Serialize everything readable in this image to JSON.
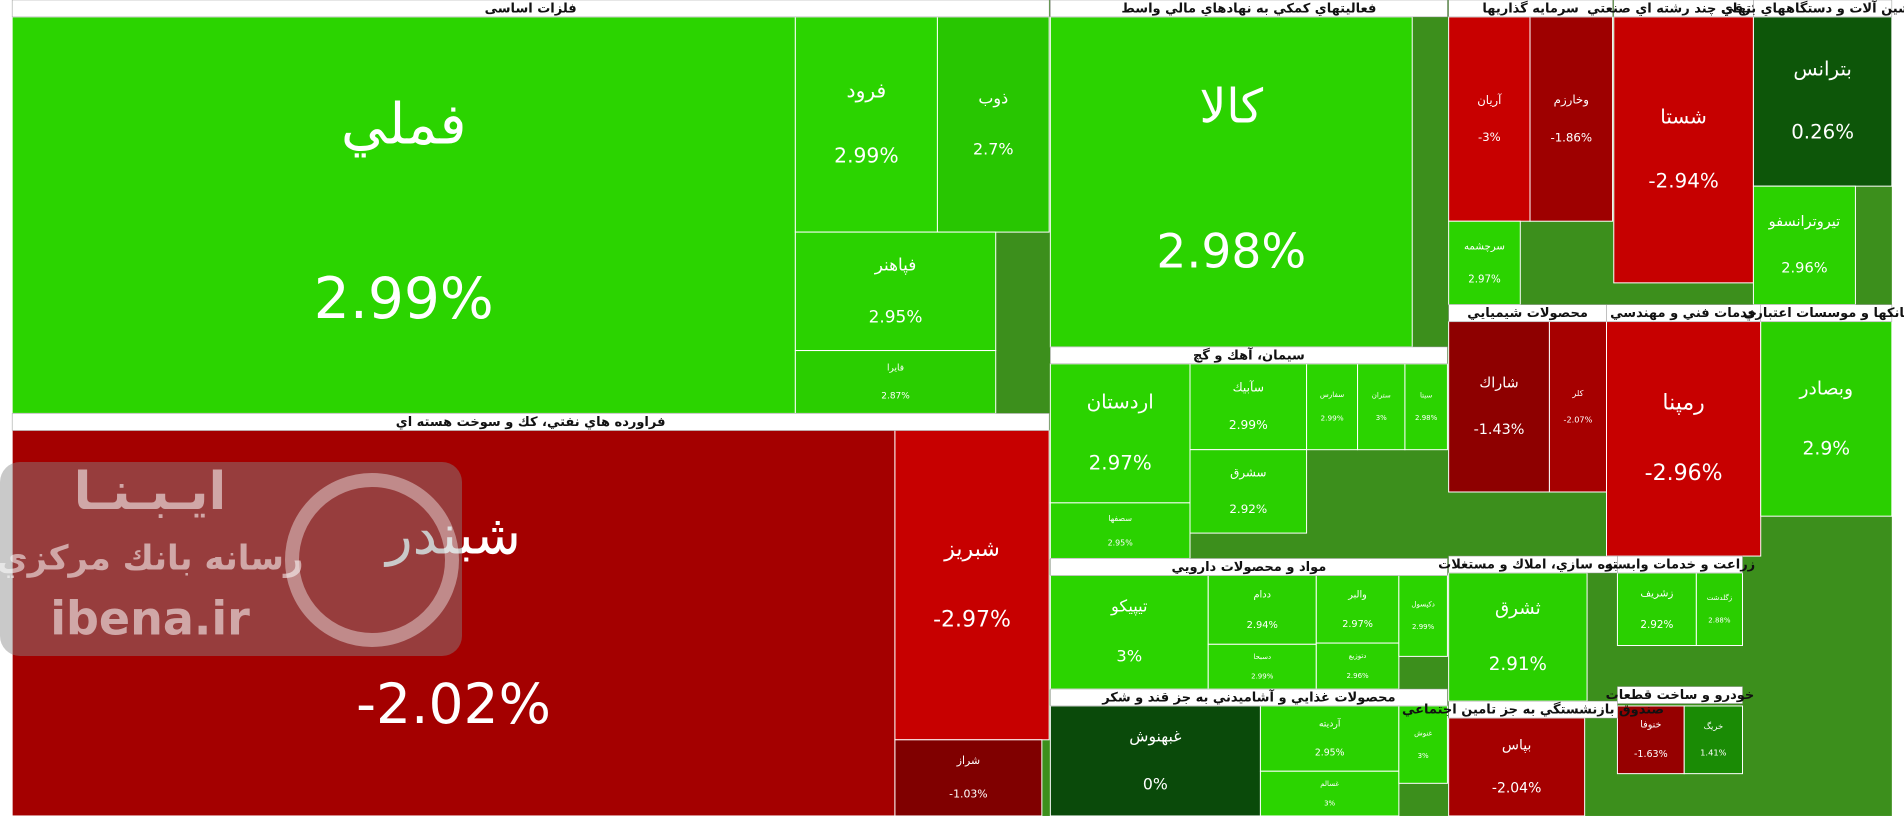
{
  "chart_data": {
    "type": "treemap",
    "color_scale": {
      "positive": "#2bd400",
      "positive_dark": "#0a4a0a",
      "negative": "#c80000",
      "negative_dark": "#5a0000"
    },
    "watermark": {
      "title": "ايـبـنـا",
      "subtitle": "رسانه بانك مركزي",
      "url": "ibena.ir"
    },
    "sectors": [
      {
        "name": "فلزات اساسی",
        "categories": [
          "فملي",
          "فرود",
          "ذوب",
          "فپاهنر",
          "فايرا"
        ],
        "values": [
          2.99,
          2.99,
          2.7,
          2.95,
          2.87
        ],
        "value_labels": [
          "2.99%",
          "2.99%",
          "2.7%",
          "2.95%",
          "2.87%"
        ]
      },
      {
        "name": "فراورده هاي نفتي، كك و سوخت هسته اي",
        "categories": [
          "شبندر",
          "شبريز",
          "شراز"
        ],
        "values": [
          -2.02,
          -2.97,
          -1.03
        ],
        "value_labels": [
          "-2.02%",
          "-2.97%",
          "-1.03%"
        ]
      },
      {
        "name": "فعاليتهاي كمكي به نهادهاي مالي واسط",
        "categories": [
          "كالا"
        ],
        "values": [
          2.98
        ],
        "value_labels": [
          "2.98%"
        ]
      },
      {
        "name": "سيمان، آهك و گچ",
        "categories": [
          "اردستان",
          "سصفها",
          "سآبيك",
          "سشرق",
          "سفارس",
          "ستران",
          "سيتا"
        ],
        "values": [
          2.97,
          2.95,
          2.99,
          2.92,
          2.99,
          3,
          2.98
        ],
        "value_labels": [
          "2.97%",
          "2.95%",
          "2.99%",
          "2.92%",
          "2.99%",
          "3%",
          "2.98%"
        ]
      },
      {
        "name": "مواد و محصولات دارويي",
        "categories": [
          "تيپيكو",
          "ددام",
          "دسبحا",
          "والبر",
          "دتوزيع",
          "دكپسول"
        ],
        "values": [
          3,
          2.94,
          2.99,
          2.97,
          2.96,
          2.99
        ],
        "value_labels": [
          "3%",
          "2.94%",
          "2.99%",
          "2.97%",
          "2.96%",
          "2.99%"
        ]
      },
      {
        "name": "محصولات غذايي و آشاميدني به جز قند و شكر",
        "categories": [
          "غبهنوش",
          "آرديته",
          "غسالم",
          "غنوش"
        ],
        "values": [
          0,
          2.95,
          3,
          3
        ],
        "value_labels": [
          "0%",
          "2.95%",
          "3%",
          "3%"
        ]
      },
      {
        "name": "سرمايه گذاريها",
        "categories": [
          "آريان",
          "وخارزم",
          "سرچشمه"
        ],
        "values": [
          -3,
          -1.86,
          2.97
        ],
        "value_labels": [
          "-3%",
          "-1.86%",
          "2.97%"
        ]
      },
      {
        "name": "شركتهاي چند رشته اي صنعتي",
        "categories": [
          "شستا"
        ],
        "values": [
          -2.94
        ],
        "value_labels": [
          "-2.94%"
        ]
      },
      {
        "name": "ماشين آلات و دستگاههاي برقي",
        "categories": [
          "بترانس",
          "تيروترانسفو"
        ],
        "values": [
          0.26,
          2.96
        ],
        "value_labels": [
          "0.26%",
          "2.96%"
        ]
      },
      {
        "name": "محصولات شيميايي",
        "categories": [
          "شاراك",
          "كلر"
        ],
        "values": [
          -1.43,
          -2.07
        ],
        "value_labels": [
          "-1.43%",
          "-2.07%"
        ]
      },
      {
        "name": "خدمات فني و مهندسي",
        "categories": [
          "رمپنا"
        ],
        "values": [
          -2.96
        ],
        "value_labels": [
          "-2.96%"
        ]
      },
      {
        "name": "بانكها و موسسات اعتباري",
        "categories": [
          "وبصادر"
        ],
        "values": [
          2.9
        ],
        "value_labels": [
          "2.9%"
        ]
      },
      {
        "name": "انبوه سازي، املاك و مستغلات",
        "categories": [
          "ثشرق"
        ],
        "values": [
          2.91
        ],
        "value_labels": [
          "2.91%"
        ]
      },
      {
        "name": "زراعت و خدمات وابسته",
        "categories": [
          "زشريف",
          "زگلدشت"
        ],
        "values": [
          2.92,
          2.88
        ],
        "value_labels": [
          "2.92%",
          "2.88%"
        ]
      },
      {
        "name": "خودرو و ساخت قطعات",
        "categories": [
          "خنوفا",
          "خريگ"
        ],
        "values": [
          -1.63,
          1.41
        ],
        "value_labels": [
          "-1.63%",
          "1.41%"
        ]
      },
      {
        "name": "صندوق بازنشستگي به جز تامين اجتماعي",
        "categories": [
          "بپاس"
        ],
        "values": [
          -2.04
        ],
        "value_labels": [
          "-2.04%"
        ]
      }
    ]
  }
}
